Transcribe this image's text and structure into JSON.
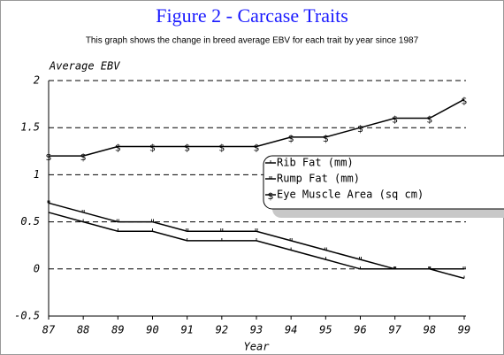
{
  "chart_data": {
    "type": "line",
    "title": "Figure 2 - Carcase Traits",
    "subtitle": "This graph shows the change in breed average EBV for each trait by year since 1987",
    "ylabel": "Average EBV",
    "xlabel": "Year",
    "x": [
      87,
      88,
      89,
      90,
      91,
      92,
      93,
      94,
      95,
      96,
      97,
      98,
      99
    ],
    "xlim": [
      87,
      99
    ],
    "xticks": [
      87,
      88,
      89,
      90,
      91,
      92,
      93,
      94,
      95,
      96,
      97,
      98,
      99
    ],
    "ylim": [
      -0.5,
      2
    ],
    "yticks": [
      -0.5,
      0,
      0.5,
      1,
      1.5,
      2
    ],
    "grid": true,
    "series": [
      {
        "name": "Rib Fat (mm)",
        "color": "#000000",
        "marker": "'",
        "values": [
          0.6,
          0.5,
          0.4,
          0.4,
          0.3,
          0.3,
          0.3,
          0.2,
          0.1,
          0,
          0,
          0,
          -0.1
        ]
      },
      {
        "name": "Rump Fat (mm)",
        "color": "#000000",
        "marker": "\"",
        "values": [
          0.7,
          0.6,
          0.5,
          0.5,
          0.4,
          0.4,
          0.4,
          0.3,
          0.2,
          0.1,
          0,
          0,
          0
        ]
      },
      {
        "name": "Eye Muscle Area (sq cm)",
        "color": "#000000",
        "marker": "$",
        "values": [
          1.2,
          1.2,
          1.3,
          1.3,
          1.3,
          1.3,
          1.3,
          1.4,
          1.4,
          1.5,
          1.6,
          1.6,
          1.8
        ]
      }
    ]
  }
}
